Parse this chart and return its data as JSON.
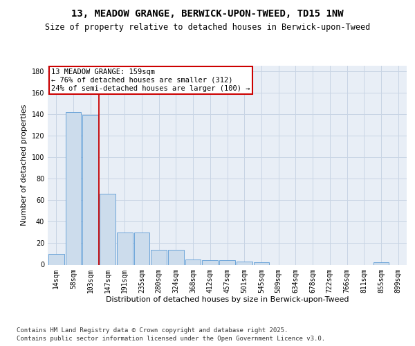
{
  "title1": "13, MEADOW GRANGE, BERWICK-UPON-TWEED, TD15 1NW",
  "title2": "Size of property relative to detached houses in Berwick-upon-Tweed",
  "xlabel": "Distribution of detached houses by size in Berwick-upon-Tweed",
  "ylabel": "Number of detached properties",
  "categories": [
    "14sqm",
    "58sqm",
    "103sqm",
    "147sqm",
    "191sqm",
    "235sqm",
    "280sqm",
    "324sqm",
    "368sqm",
    "412sqm",
    "457sqm",
    "501sqm",
    "545sqm",
    "589sqm",
    "634sqm",
    "678sqm",
    "722sqm",
    "766sqm",
    "811sqm",
    "855sqm",
    "899sqm"
  ],
  "values": [
    10,
    142,
    139,
    66,
    30,
    30,
    14,
    14,
    5,
    4,
    4,
    3,
    2,
    0,
    0,
    0,
    0,
    0,
    0,
    2,
    0
  ],
  "bar_color": "#ccdcec",
  "bar_edge_color": "#5b9bd5",
  "grid_color": "#c8d4e4",
  "bg_color": "#e8eef6",
  "annotation_box_color": "#cc0000",
  "vline_color": "#cc0000",
  "vline_x": 2.5,
  "annotation_title": "13 MEADOW GRANGE: 159sqm",
  "annotation_line1": "← 76% of detached houses are smaller (312)",
  "annotation_line2": "24% of semi-detached houses are larger (100) →",
  "ylim": [
    0,
    185
  ],
  "yticks": [
    0,
    20,
    40,
    60,
    80,
    100,
    120,
    140,
    160,
    180
  ],
  "footnote1": "Contains HM Land Registry data © Crown copyright and database right 2025.",
  "footnote2": "Contains public sector information licensed under the Open Government Licence v3.0.",
  "title_fontsize": 10,
  "subtitle_fontsize": 8.5,
  "tick_fontsize": 7,
  "label_fontsize": 8,
  "footnote_fontsize": 6.5,
  "ann_fontsize": 7.5
}
